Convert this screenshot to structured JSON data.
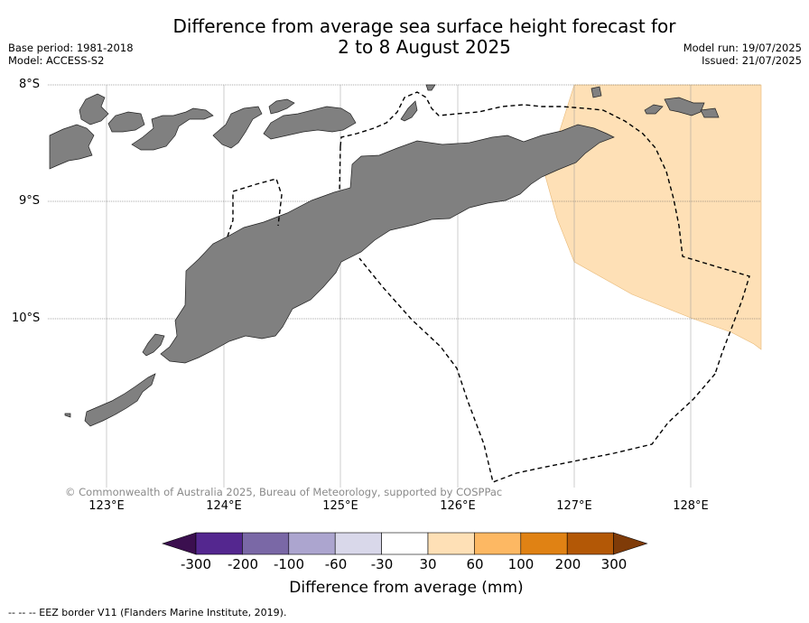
{
  "title_line1": "Difference from average sea surface height forecast for",
  "title_line2": "2 to 8 August 2025",
  "base_period": "Base period: 1981-2018",
  "model": "Model: ACCESS-S2",
  "model_run": "Model run: 19/07/2025",
  "issued": "Issued: 21/07/2025",
  "lat_labels": [
    "8°S",
    "9°S",
    "10°S"
  ],
  "lon_labels": [
    "123°E",
    "124°E",
    "125°E",
    "126°E",
    "127°E",
    "128°E"
  ],
  "copyright": "© Commonwealth of Australia 2025, Bureau of Meteorology, supported by COSPPac",
  "colorbar": {
    "ticks": [
      "-300",
      "-200",
      "-100",
      "-60",
      "-30",
      "30",
      "60",
      "100",
      "200",
      "300"
    ],
    "colors": [
      "#3b0f4f",
      "#54278f",
      "#7a68a6",
      "#aca5cf",
      "#d9d8ea",
      "#ffffff",
      "#fee0b6",
      "#fdb863",
      "#e08214",
      "#b35806",
      "#7f3b08"
    ],
    "label": "Difference from average (mm)"
  },
  "anomaly_color": "#fee0b6",
  "land_color": "#808080",
  "legend": "--  --  -- EEZ border V11 (Flanders Marine Institute, 2019)."
}
